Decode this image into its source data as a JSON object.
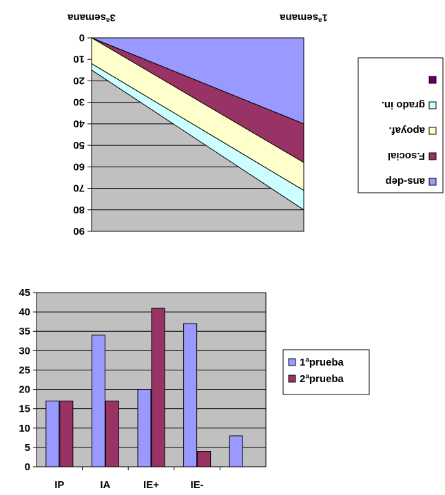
{
  "chart_data": [
    {
      "type": "area",
      "rendering": "stacked area chart displayed rotated 180 degrees (upside-down)",
      "categories": [
        "1ªsemana",
        "3ªsemana"
      ],
      "ylim": [
        0,
        90
      ],
      "yticks": [
        "0",
        "10",
        "20",
        "30",
        "40",
        "50",
        "60",
        "70",
        "80",
        "90"
      ],
      "grid": true,
      "legend_position": "right",
      "series": [
        {
          "name": "ans-dep",
          "values": [
            40,
            0
          ],
          "color": "#9999ff"
        },
        {
          "name": "F.social",
          "values": [
            18,
            0
          ],
          "color": "#993366"
        },
        {
          "name": "apoyaf.",
          "values": [
            13,
            12
          ],
          "color": "#ffffcc"
        },
        {
          "name": "grado in.",
          "values": [
            9,
            3
          ],
          "color": "#ccffff"
        },
        {
          "name": "",
          "values": [
            0,
            0
          ],
          "color": "#660066"
        }
      ],
      "plot_color": "#c0c0c0"
    },
    {
      "type": "bar",
      "categories": [
        "IP",
        "IA",
        "IE+",
        "IE-",
        ""
      ],
      "ylim": [
        0,
        45
      ],
      "yticks": [
        "0",
        "5",
        "10",
        "15",
        "20",
        "25",
        "30",
        "35",
        "40",
        "45"
      ],
      "grid": true,
      "legend_position": "right",
      "series": [
        {
          "name": "1ªprueba",
          "values": [
            17,
            34,
            20,
            37,
            8
          ],
          "color": "#9999ff"
        },
        {
          "name": "2ªprueba",
          "values": [
            17,
            17,
            41,
            4,
            null
          ],
          "color": "#993366"
        }
      ],
      "plot_color": "#c0c0c0"
    }
  ]
}
